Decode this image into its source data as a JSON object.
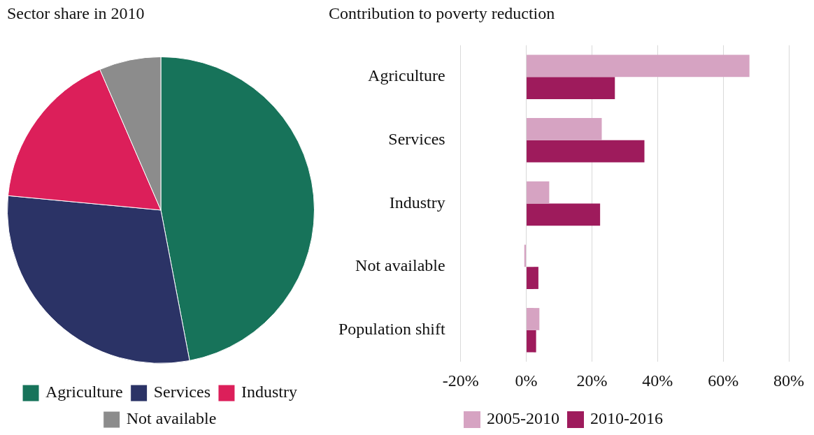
{
  "chart_data": [
    {
      "type": "pie",
      "title": "Sector share in 2010",
      "categories": [
        "Agriculture",
        "Services",
        "Industry",
        "Not available"
      ],
      "values": [
        47,
        29.5,
        17,
        6.5
      ],
      "colors": [
        "#17735a",
        "#2b3366",
        "#dc1f5a",
        "#8c8c8c"
      ],
      "legend": "bottom"
    },
    {
      "type": "bar",
      "orientation": "horizontal",
      "title": "Contribution to poverty reduction",
      "categories": [
        "Agriculture",
        "Services",
        "Industry",
        "Not available",
        "Population shift"
      ],
      "series": [
        {
          "name": "2005-2010",
          "color": "#d6a3c2",
          "values": [
            68,
            23,
            7,
            -0.6,
            4
          ]
        },
        {
          "name": "2010-2016",
          "color": "#9e1b5c",
          "values": [
            27,
            36,
            22.5,
            3.7,
            3
          ]
        }
      ],
      "xlim": [
        -20,
        80
      ],
      "xticks": [
        {
          "value": -20,
          "label": "-20%"
        },
        {
          "value": 0,
          "label": "0%"
        },
        {
          "value": 20,
          "label": "20%"
        },
        {
          "value": 40,
          "label": "40%"
        },
        {
          "value": 60,
          "label": "60%"
        },
        {
          "value": 80,
          "label": "80%"
        }
      ],
      "grid": "x",
      "legend": "bottom"
    }
  ]
}
